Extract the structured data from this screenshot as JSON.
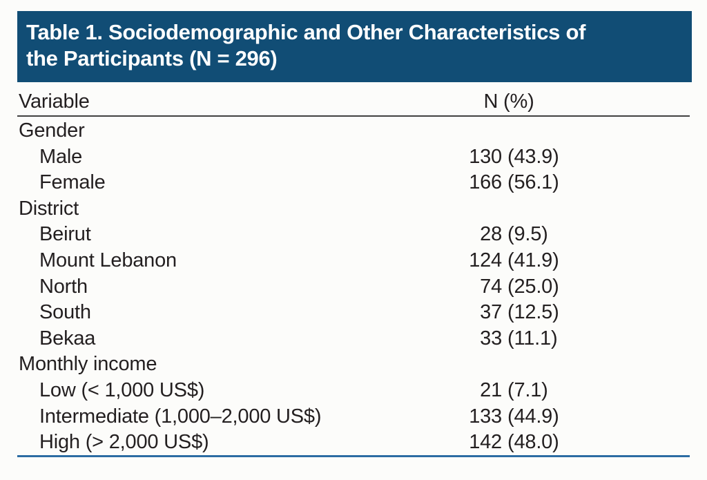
{
  "figure": {
    "title": "Table 1. Sociodemographic and Other Characteristics of\nthe Participants (N = 296)",
    "columns": {
      "variable": "Variable",
      "n_pct": "N (%)"
    },
    "rows": [
      {
        "label": "Gender",
        "type": "category",
        "n": "",
        "pct": ""
      },
      {
        "label": "Male",
        "type": "item",
        "n": "130",
        "pct": "(43.9)"
      },
      {
        "label": "Female",
        "type": "item",
        "n": "166",
        "pct": "(56.1)"
      },
      {
        "label": "District",
        "type": "category",
        "n": "",
        "pct": ""
      },
      {
        "label": "Beirut",
        "type": "item",
        "n": "28",
        "pct": "(9.5)"
      },
      {
        "label": "Mount Lebanon",
        "type": "item",
        "n": "124",
        "pct": "(41.9)"
      },
      {
        "label": "North",
        "type": "item",
        "n": "74",
        "pct": "(25.0)"
      },
      {
        "label": "South",
        "type": "item",
        "n": "37",
        "pct": "(12.5)"
      },
      {
        "label": "Bekaa",
        "type": "item",
        "n": "33",
        "pct": "(11.1)"
      },
      {
        "label": "Monthly income",
        "type": "category",
        "n": "",
        "pct": ""
      },
      {
        "label": "Low (< 1,000 US$)",
        "type": "item",
        "n": "21",
        "pct": "(7.1)"
      },
      {
        "label": "Intermediate (1,000–2,000 US$)",
        "type": "item",
        "n": "133",
        "pct": "(44.9)"
      },
      {
        "label": "High (> 2,000 US$)",
        "type": "item",
        "n": "142",
        "pct": "(48.0)"
      }
    ],
    "colors": {
      "header_bg": "#114d75",
      "title_text": "#ffffff",
      "body_text": "#231f20",
      "header_rule": "#404040",
      "bottom_rule": "#2b6ca3"
    }
  }
}
